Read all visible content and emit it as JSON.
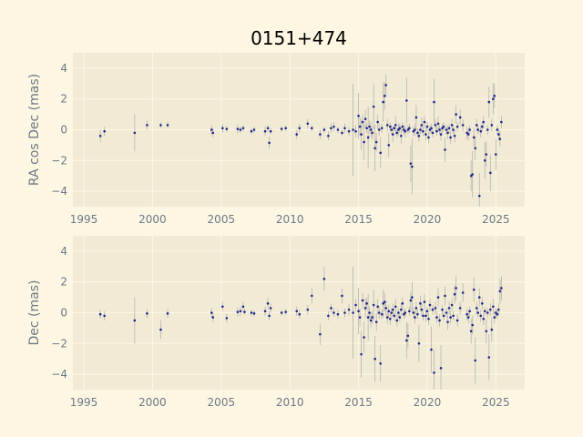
{
  "title": "0151+474",
  "colors": {
    "figure_bg": "#fdf6e3",
    "axes_bg": "#f1ebd6",
    "grid": "#fdf6e3",
    "point": "#1f2a8c",
    "errorbar": "#b8b4ad",
    "tick_text": "#6b7a86",
    "title_text": "#000000"
  },
  "chart_data": [
    {
      "type": "scatter",
      "ylabel": "RA cos Dec (mas)",
      "xlabel": "",
      "xlim": [
        1994.2,
        2027.1
      ],
      "ylim": [
        -5,
        5
      ],
      "xticks": [
        1995,
        2000,
        2005,
        2010,
        2015,
        2020,
        2025
      ],
      "yticks": [
        -4,
        -2,
        0,
        2,
        4
      ],
      "grid": true,
      "points": [
        [
          1996.2,
          -0.4,
          0.4
        ],
        [
          1996.5,
          -0.1,
          0.3
        ],
        [
          1998.7,
          -0.2,
          1.2
        ],
        [
          1999.6,
          0.3,
          0.3
        ],
        [
          2000.6,
          0.3,
          0.2
        ],
        [
          2001.1,
          0.3,
          0.2
        ],
        [
          2004.3,
          0.0,
          0.3
        ],
        [
          2004.4,
          -0.2,
          0.3
        ],
        [
          2005.1,
          0.1,
          0.3
        ],
        [
          2005.4,
          0.05,
          0.2
        ],
        [
          2006.2,
          0.05,
          0.3
        ],
        [
          2006.4,
          0.0,
          0.2
        ],
        [
          2006.6,
          0.1,
          0.2
        ],
        [
          2007.2,
          -0.1,
          0.2
        ],
        [
          2007.4,
          0.0,
          0.2
        ],
        [
          2008.2,
          -0.1,
          0.3
        ],
        [
          2008.4,
          0.1,
          0.2
        ],
        [
          2008.5,
          -0.85,
          0.4
        ],
        [
          2008.6,
          -0.1,
          0.2
        ],
        [
          2009.4,
          0.05,
          0.2
        ],
        [
          2009.7,
          0.1,
          0.2
        ],
        [
          2010.5,
          -0.3,
          0.3
        ],
        [
          2010.7,
          0.1,
          0.3
        ],
        [
          2011.3,
          0.4,
          0.3
        ],
        [
          2011.6,
          0.1,
          0.2
        ],
        [
          2012.2,
          -0.3,
          0.3
        ],
        [
          2012.5,
          0.0,
          0.2
        ],
        [
          2012.8,
          -0.4,
          0.3
        ],
        [
          2013.0,
          0.1,
          0.3
        ],
        [
          2013.2,
          0.2,
          0.3
        ],
        [
          2013.5,
          0.0,
          0.2
        ],
        [
          2013.8,
          -0.2,
          0.2
        ],
        [
          2014.0,
          0.1,
          0.3
        ],
        [
          2014.3,
          -0.1,
          0.3
        ],
        [
          2014.6,
          0.0,
          3.0
        ],
        [
          2014.8,
          -0.1,
          0.4
        ],
        [
          2015.0,
          0.9,
          1.5
        ],
        [
          2015.1,
          0.2,
          0.6
        ],
        [
          2015.2,
          -0.3,
          1.0
        ],
        [
          2015.3,
          0.5,
          0.5
        ],
        [
          2015.4,
          -0.8,
          1.2
        ],
        [
          2015.5,
          0.7,
          0.6
        ],
        [
          2015.6,
          0.1,
          0.3
        ],
        [
          2015.7,
          -0.5,
          2.0
        ],
        [
          2015.8,
          0.2,
          0.4
        ],
        [
          2015.9,
          0.0,
          0.5
        ],
        [
          2016.0,
          -0.2,
          0.4
        ],
        [
          2016.1,
          1.5,
          1.5
        ],
        [
          2016.2,
          -1.2,
          1.5
        ],
        [
          2016.3,
          -0.8,
          0.6
        ],
        [
          2016.4,
          0.5,
          0.5
        ],
        [
          2016.5,
          0.0,
          0.4
        ],
        [
          2016.6,
          -1.5,
          1.0
        ],
        [
          2016.7,
          0.1,
          0.3
        ],
        [
          2016.8,
          1.8,
          1.3
        ],
        [
          2016.9,
          2.2,
          0.9
        ],
        [
          2017.0,
          2.9,
          0.7
        ],
        [
          2017.1,
          0.3,
          0.4
        ],
        [
          2017.2,
          -1.0,
          0.8
        ],
        [
          2017.3,
          0.2,
          0.3
        ],
        [
          2017.4,
          0.0,
          0.3
        ],
        [
          2017.5,
          -0.3,
          0.5
        ],
        [
          2017.6,
          0.1,
          0.2
        ],
        [
          2017.7,
          0.3,
          0.6
        ],
        [
          2017.8,
          -0.2,
          0.3
        ],
        [
          2017.9,
          0.0,
          0.4
        ],
        [
          2018.0,
          0.1,
          0.3
        ],
        [
          2018.1,
          -0.4,
          0.5
        ],
        [
          2018.2,
          0.2,
          0.3
        ],
        [
          2018.3,
          0.0,
          0.3
        ],
        [
          2018.4,
          -0.1,
          0.4
        ],
        [
          2018.5,
          1.9,
          1.5
        ],
        [
          2018.6,
          0.0,
          0.3
        ],
        [
          2018.7,
          0.1,
          0.3
        ],
        [
          2018.8,
          -2.2,
          1.2
        ],
        [
          2018.9,
          -2.4,
          1.8
        ],
        [
          2019.0,
          -0.1,
          0.3
        ],
        [
          2019.1,
          0.0,
          0.4
        ],
        [
          2019.2,
          0.8,
          0.8
        ],
        [
          2019.3,
          -0.2,
          0.3
        ],
        [
          2019.4,
          -0.4,
          0.4
        ],
        [
          2019.5,
          0.0,
          0.3
        ],
        [
          2019.6,
          0.3,
          0.5
        ],
        [
          2019.7,
          -0.1,
          0.3
        ],
        [
          2019.8,
          0.5,
          0.4
        ],
        [
          2019.9,
          -0.3,
          0.4
        ],
        [
          2020.0,
          0.2,
          0.3
        ],
        [
          2020.1,
          -0.5,
          0.4
        ],
        [
          2020.2,
          0.0,
          0.3
        ],
        [
          2020.3,
          0.1,
          0.3
        ],
        [
          2020.4,
          -0.2,
          0.3
        ],
        [
          2020.5,
          1.8,
          1.5
        ],
        [
          2020.6,
          0.3,
          0.4
        ],
        [
          2020.7,
          -0.1,
          0.3
        ],
        [
          2020.8,
          0.4,
          0.5
        ],
        [
          2020.9,
          0.0,
          0.3
        ],
        [
          2021.0,
          -0.3,
          0.4
        ],
        [
          2021.1,
          0.1,
          0.3
        ],
        [
          2021.2,
          0.2,
          0.3
        ],
        [
          2021.3,
          -1.3,
          0.8
        ],
        [
          2021.4,
          0.0,
          0.3
        ],
        [
          2021.5,
          -0.2,
          0.4
        ],
        [
          2021.6,
          0.1,
          0.3
        ],
        [
          2021.7,
          -0.5,
          0.4
        ],
        [
          2021.8,
          0.3,
          0.4
        ],
        [
          2021.9,
          0.0,
          0.3
        ],
        [
          2022.0,
          -0.4,
          0.4
        ],
        [
          2022.1,
          1.0,
          0.6
        ],
        [
          2022.2,
          0.2,
          0.3
        ],
        [
          2022.4,
          0.8,
          0.5
        ],
        [
          2022.6,
          0.3,
          0.4
        ],
        [
          2022.9,
          -0.2,
          0.4
        ],
        [
          2023.0,
          -0.3,
          0.4
        ],
        [
          2023.1,
          0.0,
          0.3
        ],
        [
          2023.2,
          -3.0,
          1.0
        ],
        [
          2023.3,
          -2.9,
          1.5
        ],
        [
          2023.4,
          -0.5,
          0.6
        ],
        [
          2023.5,
          -1.2,
          0.8
        ],
        [
          2023.6,
          0.3,
          0.4
        ],
        [
          2023.7,
          0.0,
          0.3
        ],
        [
          2023.8,
          -4.3,
          1.5
        ],
        [
          2023.9,
          -0.1,
          0.4
        ],
        [
          2024.0,
          0.2,
          0.3
        ],
        [
          2024.1,
          0.5,
          0.4
        ],
        [
          2024.2,
          -2.0,
          1.2
        ],
        [
          2024.3,
          -1.6,
          0.8
        ],
        [
          2024.4,
          0.0,
          0.3
        ],
        [
          2024.5,
          1.8,
          1.0
        ],
        [
          2024.6,
          -2.8,
          1.2
        ],
        [
          2024.7,
          0.3,
          0.4
        ],
        [
          2024.8,
          2.0,
          1.0
        ],
        [
          2024.9,
          2.2,
          0.8
        ],
        [
          2025.0,
          -1.6,
          1.0
        ],
        [
          2025.1,
          0.0,
          0.3
        ],
        [
          2025.2,
          -0.3,
          0.4
        ],
        [
          2025.3,
          -0.6,
          0.5
        ],
        [
          2025.4,
          0.5,
          0.4
        ]
      ]
    },
    {
      "type": "scatter",
      "ylabel": "Dec (mas)",
      "xlabel": "",
      "xlim": [
        1994.2,
        2027.1
      ],
      "ylim": [
        -5,
        5
      ],
      "xticks": [
        1995,
        2000,
        2005,
        2010,
        2015,
        2020,
        2025
      ],
      "yticks": [
        -4,
        -2,
        0,
        2,
        4
      ],
      "grid": true,
      "points": [
        [
          1996.2,
          -0.1,
          0.3
        ],
        [
          1996.5,
          -0.2,
          0.3
        ],
        [
          1998.7,
          -0.5,
          1.5
        ],
        [
          1999.6,
          -0.05,
          0.3
        ],
        [
          2000.6,
          -1.1,
          0.6
        ],
        [
          2001.1,
          -0.05,
          0.3
        ],
        [
          2004.3,
          0.0,
          0.3
        ],
        [
          2004.4,
          -0.3,
          0.3
        ],
        [
          2005.1,
          0.4,
          0.3
        ],
        [
          2005.4,
          -0.35,
          0.3
        ],
        [
          2006.2,
          0.05,
          0.3
        ],
        [
          2006.4,
          0.1,
          0.3
        ],
        [
          2006.6,
          0.4,
          0.3
        ],
        [
          2006.7,
          0.05,
          0.2
        ],
        [
          2007.2,
          0.0,
          0.2
        ],
        [
          2007.4,
          -0.05,
          0.2
        ],
        [
          2008.2,
          0.1,
          0.3
        ],
        [
          2008.4,
          0.6,
          0.4
        ],
        [
          2008.5,
          -0.2,
          0.3
        ],
        [
          2008.6,
          0.3,
          0.3
        ],
        [
          2009.4,
          0.0,
          0.2
        ],
        [
          2009.7,
          0.05,
          0.2
        ],
        [
          2010.5,
          0.1,
          0.3
        ],
        [
          2010.7,
          -0.1,
          0.3
        ],
        [
          2011.3,
          0.2,
          0.3
        ],
        [
          2011.6,
          1.1,
          0.5
        ],
        [
          2012.2,
          -1.4,
          0.7
        ],
        [
          2012.5,
          2.2,
          0.8
        ],
        [
          2012.8,
          -0.2,
          0.3
        ],
        [
          2013.0,
          0.3,
          0.3
        ],
        [
          2013.2,
          0.0,
          0.3
        ],
        [
          2013.5,
          -0.1,
          0.3
        ],
        [
          2013.8,
          1.1,
          0.5
        ],
        [
          2014.0,
          0.0,
          0.3
        ],
        [
          2014.3,
          0.2,
          0.4
        ],
        [
          2014.6,
          0.0,
          3.0
        ],
        [
          2014.8,
          0.5,
          0.4
        ],
        [
          2015.0,
          0.1,
          1.5
        ],
        [
          2015.1,
          -0.3,
          0.6
        ],
        [
          2015.2,
          -2.7,
          1.5
        ],
        [
          2015.3,
          0.8,
          0.5
        ],
        [
          2015.4,
          -1.6,
          1.0
        ],
        [
          2015.5,
          0.3,
          0.6
        ],
        [
          2015.6,
          0.6,
          0.4
        ],
        [
          2015.7,
          -0.3,
          1.5
        ],
        [
          2015.8,
          0.0,
          0.4
        ],
        [
          2015.9,
          -0.5,
          0.5
        ],
        [
          2016.0,
          -0.3,
          0.4
        ],
        [
          2016.1,
          0.5,
          1.0
        ],
        [
          2016.2,
          -3.0,
          1.5
        ],
        [
          2016.3,
          -0.6,
          0.6
        ],
        [
          2016.4,
          0.4,
          0.5
        ],
        [
          2016.5,
          0.0,
          0.4
        ],
        [
          2016.6,
          -3.3,
          1.2
        ],
        [
          2016.7,
          -0.1,
          0.3
        ],
        [
          2016.8,
          0.6,
          0.9
        ],
        [
          2016.9,
          0.7,
          0.6
        ],
        [
          2017.0,
          0.3,
          0.5
        ],
        [
          2017.1,
          -0.3,
          0.4
        ],
        [
          2017.2,
          0.1,
          0.4
        ],
        [
          2017.3,
          -0.4,
          0.4
        ],
        [
          2017.4,
          0.0,
          0.3
        ],
        [
          2017.5,
          0.2,
          0.4
        ],
        [
          2017.6,
          -0.2,
          0.3
        ],
        [
          2017.7,
          0.4,
          0.5
        ],
        [
          2017.8,
          -0.5,
          0.4
        ],
        [
          2017.9,
          0.0,
          0.3
        ],
        [
          2018.0,
          -0.3,
          0.3
        ],
        [
          2018.1,
          0.2,
          0.4
        ],
        [
          2018.2,
          0.6,
          0.4
        ],
        [
          2018.3,
          -0.1,
          0.3
        ],
        [
          2018.4,
          0.0,
          0.3
        ],
        [
          2018.5,
          -1.8,
          1.2
        ],
        [
          2018.6,
          -1.5,
          0.8
        ],
        [
          2018.7,
          0.1,
          0.3
        ],
        [
          2018.8,
          0.8,
          0.6
        ],
        [
          2018.9,
          1.0,
          1.0
        ],
        [
          2019.0,
          0.0,
          0.3
        ],
        [
          2019.1,
          -0.3,
          0.4
        ],
        [
          2019.2,
          0.3,
          0.4
        ],
        [
          2019.3,
          -0.1,
          0.3
        ],
        [
          2019.4,
          -2.0,
          1.2
        ],
        [
          2019.5,
          0.6,
          0.5
        ],
        [
          2019.6,
          0.2,
          0.4
        ],
        [
          2019.7,
          -0.2,
          0.3
        ],
        [
          2019.8,
          0.7,
          0.5
        ],
        [
          2019.9,
          -0.2,
          0.4
        ],
        [
          2020.0,
          0.1,
          0.3
        ],
        [
          2020.1,
          -0.4,
          0.4
        ],
        [
          2020.2,
          0.5,
          0.4
        ],
        [
          2020.3,
          -2.4,
          1.5
        ],
        [
          2020.4,
          0.2,
          0.3
        ],
        [
          2020.5,
          -3.9,
          1.5
        ],
        [
          2020.6,
          0.3,
          0.4
        ],
        [
          2020.7,
          -0.3,
          0.4
        ],
        [
          2020.8,
          1.0,
          0.6
        ],
        [
          2020.9,
          -0.5,
          0.4
        ],
        [
          2021.0,
          -3.6,
          1.5
        ],
        [
          2021.1,
          0.2,
          0.3
        ],
        [
          2021.2,
          -0.2,
          0.3
        ],
        [
          2021.3,
          1.1,
          0.6
        ],
        [
          2021.4,
          0.0,
          0.3
        ],
        [
          2021.5,
          -0.6,
          0.5
        ],
        [
          2021.6,
          0.3,
          0.4
        ],
        [
          2021.7,
          -0.3,
          0.4
        ],
        [
          2021.8,
          0.5,
          0.4
        ],
        [
          2021.9,
          -0.2,
          0.3
        ],
        [
          2022.0,
          1.2,
          0.6
        ],
        [
          2022.1,
          1.6,
          0.8
        ],
        [
          2022.2,
          -0.5,
          0.4
        ],
        [
          2022.4,
          0.3,
          0.4
        ],
        [
          2022.6,
          1.3,
          0.6
        ],
        [
          2022.9,
          -0.1,
          0.4
        ],
        [
          2023.0,
          -0.3,
          0.4
        ],
        [
          2023.1,
          0.1,
          0.3
        ],
        [
          2023.2,
          -1.2,
          0.8
        ],
        [
          2023.3,
          -0.8,
          0.6
        ],
        [
          2023.4,
          1.5,
          0.8
        ],
        [
          2023.5,
          -3.1,
          1.5
        ],
        [
          2023.6,
          0.3,
          0.4
        ],
        [
          2023.7,
          0.0,
          0.3
        ],
        [
          2023.8,
          1.0,
          0.6
        ],
        [
          2023.9,
          -0.2,
          0.4
        ],
        [
          2024.0,
          0.6,
          0.4
        ],
        [
          2024.1,
          -0.4,
          0.4
        ],
        [
          2024.2,
          0.1,
          0.3
        ],
        [
          2024.3,
          -1.2,
          0.8
        ],
        [
          2024.4,
          0.0,
          0.3
        ],
        [
          2024.5,
          -2.9,
          1.5
        ],
        [
          2024.6,
          0.2,
          0.4
        ],
        [
          2024.7,
          -1.1,
          0.8
        ],
        [
          2024.8,
          0.4,
          0.5
        ],
        [
          2024.9,
          -0.3,
          0.4
        ],
        [
          2025.0,
          0.0,
          0.3
        ],
        [
          2025.1,
          -0.1,
          0.3
        ],
        [
          2025.2,
          0.2,
          0.4
        ],
        [
          2025.3,
          1.4,
          0.8
        ],
        [
          2025.4,
          1.6,
          0.8
        ]
      ]
    }
  ]
}
